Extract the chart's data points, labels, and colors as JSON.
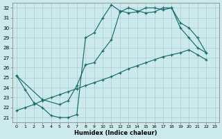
{
  "xlabel": "Humidex (Indice chaleur)",
  "bg_color": "#cce9ec",
  "grid_color": "#aacdd4",
  "line_color": "#1a6b6b",
  "xlim": [
    -0.5,
    23.5
  ],
  "ylim": [
    20.5,
    32.5
  ],
  "xticks": [
    0,
    1,
    2,
    3,
    4,
    5,
    6,
    7,
    8,
    9,
    10,
    11,
    12,
    13,
    14,
    15,
    16,
    17,
    18,
    19,
    20,
    21,
    22,
    23
  ],
  "yticks": [
    21,
    22,
    23,
    24,
    25,
    26,
    27,
    28,
    29,
    30,
    31,
    32
  ],
  "line1_x": [
    0,
    1,
    2,
    3,
    4,
    5,
    6,
    7,
    8,
    9,
    10,
    11,
    12,
    13,
    14,
    15,
    16,
    17,
    18,
    19,
    20,
    21,
    22
  ],
  "line1_y": [
    25.2,
    23.8,
    22.5,
    22.0,
    21.2,
    21.0,
    21.0,
    21.3,
    29.0,
    29.5,
    31.0,
    32.3,
    31.7,
    31.5,
    31.6,
    32.0,
    32.0,
    31.8,
    32.0,
    30.0,
    29.0,
    28.0,
    27.5
  ],
  "line2_x": [
    0,
    3,
    5,
    6,
    7,
    8,
    9,
    10,
    11,
    12,
    13,
    14,
    15,
    16,
    17,
    18,
    19,
    20,
    21,
    22
  ],
  "line2_y": [
    25.2,
    22.8,
    22.3,
    22.7,
    24.2,
    26.3,
    26.5,
    27.7,
    28.8,
    31.6,
    32.0,
    31.7,
    31.5,
    31.6,
    32.0,
    32.0,
    30.5,
    30.0,
    29.0,
    27.5
  ],
  "line3_x": [
    0,
    1,
    2,
    3,
    4,
    5,
    6,
    7,
    8,
    9,
    10,
    11,
    12,
    13,
    14,
    15,
    16,
    17,
    18,
    19,
    20,
    21,
    22
  ],
  "line3_y": [
    21.7,
    22.0,
    22.3,
    22.7,
    23.0,
    23.3,
    23.6,
    23.9,
    24.2,
    24.5,
    24.8,
    25.1,
    25.5,
    25.9,
    26.2,
    26.5,
    26.8,
    27.1,
    27.3,
    27.5,
    27.8,
    27.3,
    26.8
  ]
}
